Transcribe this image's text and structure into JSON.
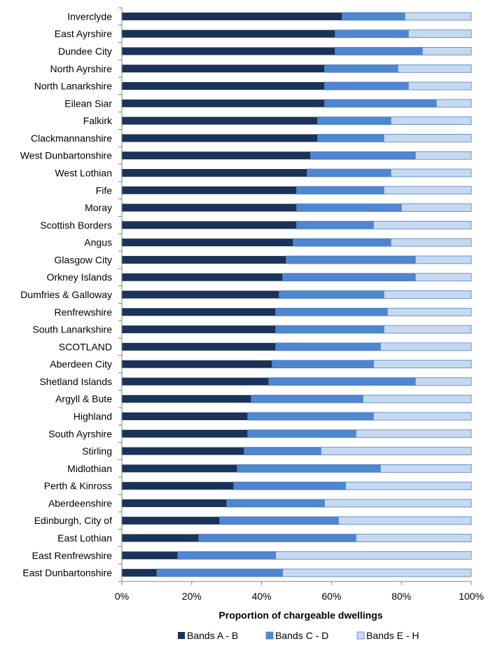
{
  "chart_data": {
    "type": "bar",
    "orientation": "horizontal",
    "stacked": true,
    "xlabel": "Proportion of chargeable dwellings",
    "xlim": [
      0,
      100
    ],
    "xticks": [
      "0%",
      "20%",
      "40%",
      "60%",
      "80%",
      "100%"
    ],
    "grid": false,
    "legend_position": "bottom",
    "categories": [
      "Inverclyde",
      "East Ayrshire",
      "Dundee City",
      "North Ayrshire",
      "North Lanarkshire",
      "Eilean Siar",
      "Falkirk",
      "Clackmannanshire",
      "West Dunbartonshire",
      "West Lothian",
      "Fife",
      "Moray",
      "Scottish Borders",
      "Angus",
      "Glasgow City",
      "Orkney Islands",
      "Dumfries & Galloway",
      "Renfrewshire",
      "South Lanarkshire",
      "SCOTLAND",
      "Aberdeen City",
      "Shetland Islands",
      "Argyll & Bute",
      "Highland",
      "South Ayrshire",
      "Stirling",
      "Midlothian",
      "Perth & Kinross",
      "Aberdeenshire",
      "Edinburgh, City of",
      "East Lothian",
      "East Renfrewshire",
      "East Dunbartonshire"
    ],
    "series": [
      {
        "name": "Bands A - B",
        "color": "#1b3358",
        "values": [
          63,
          61,
          61,
          58,
          58,
          58,
          56,
          56,
          54,
          53,
          50,
          50,
          50,
          49,
          47,
          46,
          45,
          44,
          44,
          44,
          43,
          42,
          37,
          36,
          36,
          35,
          33,
          32,
          30,
          28,
          22,
          16,
          10
        ]
      },
      {
        "name": "Bands C - D",
        "color": "#4f86d0",
        "values": [
          18,
          21,
          25,
          21,
          24,
          32,
          21,
          19,
          30,
          24,
          25,
          30,
          22,
          28,
          37,
          38,
          30,
          32,
          31,
          30,
          29,
          42,
          32,
          36,
          31,
          22,
          41,
          32,
          28,
          34,
          45,
          28,
          36
        ]
      },
      {
        "name": "Bands E - H",
        "color": "#c6d9f1",
        "values": [
          19,
          18,
          14,
          21,
          18,
          10,
          23,
          25,
          16,
          23,
          25,
          20,
          28,
          23,
          16,
          16,
          25,
          24,
          25,
          26,
          28,
          16,
          31,
          28,
          33,
          43,
          26,
          36,
          42,
          38,
          33,
          56,
          54
        ]
      }
    ]
  }
}
